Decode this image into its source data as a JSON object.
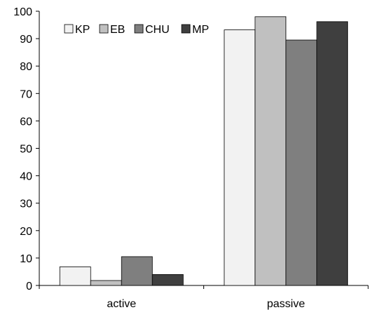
{
  "chart_data": {
    "type": "bar",
    "title": "",
    "xlabel": "",
    "ylabel": "",
    "categories": [
      "active",
      "passive"
    ],
    "series": [
      {
        "name": "KP",
        "values": [
          6.8,
          93.2
        ],
        "color": "#f2f2f2"
      },
      {
        "name": "EB",
        "values": [
          1.8,
          98.0
        ],
        "color": "#c0c0c0"
      },
      {
        "name": "CHU",
        "values": [
          10.5,
          89.5
        ],
        "color": "#7f7f7f"
      },
      {
        "name": "MP",
        "values": [
          4.0,
          96.2
        ],
        "color": "#3f3f3f"
      }
    ],
    "ylim": [
      0,
      100
    ],
    "yticks": [
      0,
      10,
      20,
      30,
      40,
      50,
      60,
      70,
      80,
      90,
      100
    ],
    "grid": false,
    "legend_position": "top-left"
  }
}
